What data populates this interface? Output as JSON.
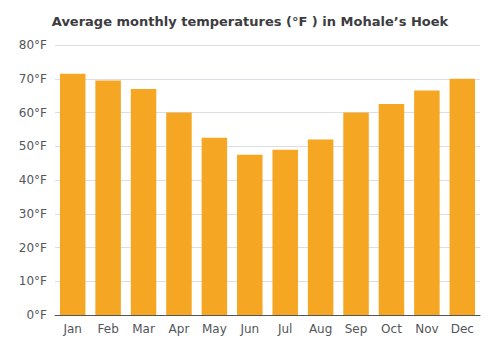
{
  "chart_data": {
    "type": "bar",
    "title": "Average monthly temperatures (°F ) in Mohale’s Hoek",
    "categories": [
      "Jan",
      "Feb",
      "Mar",
      "Apr",
      "May",
      "Jun",
      "Jul",
      "Aug",
      "Sep",
      "Oct",
      "Nov",
      "Dec"
    ],
    "values": [
      71.5,
      69.5,
      67.0,
      60.0,
      52.5,
      47.5,
      49.0,
      52.0,
      60.0,
      62.5,
      66.5,
      70.0
    ],
    "color": "#F5A623",
    "ylim": [
      0,
      80
    ],
    "yticks": [
      {
        "value": 0,
        "label": "0°F"
      },
      {
        "value": 10,
        "label": "10°F"
      },
      {
        "value": 20,
        "label": "20°F"
      },
      {
        "value": 30,
        "label": "30°F"
      },
      {
        "value": 40,
        "label": "40°F"
      },
      {
        "value": 50,
        "label": "50°F"
      },
      {
        "value": 60,
        "label": "60°F"
      },
      {
        "value": 70,
        "label": "70°F"
      },
      {
        "value": 80,
        "label": "80°F"
      }
    ],
    "grid": true
  }
}
